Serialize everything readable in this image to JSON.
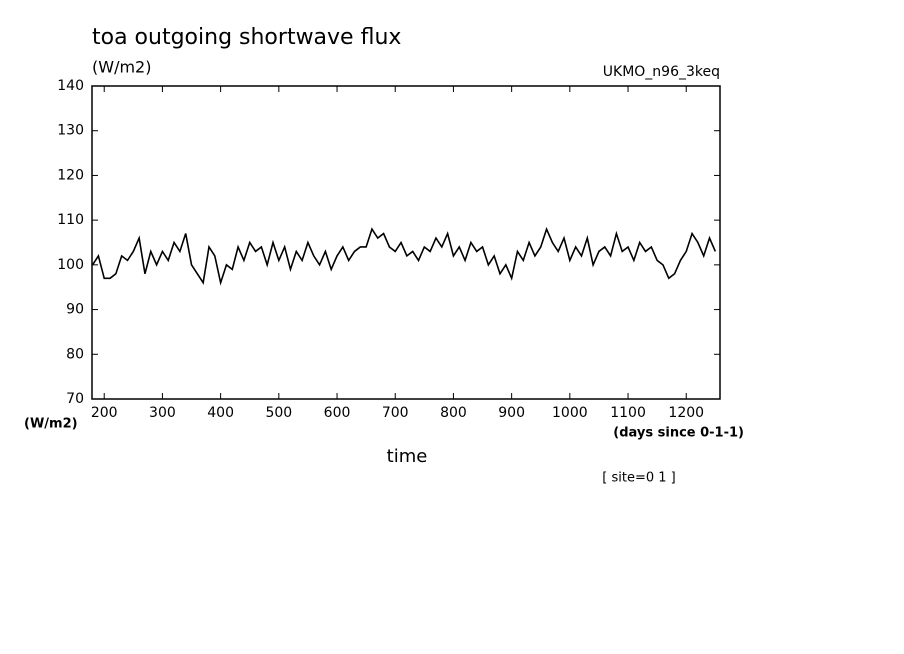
{
  "chart_data": {
    "type": "line",
    "title": "toa outgoing shortwave flux",
    "units": "(W/m2)",
    "model": "UKMO_n96_3keq",
    "y_label": "(W/m2)",
    "x_units": "(days since 0-1-1)",
    "x_label": "time",
    "site": "[ site=0 1 ]",
    "x": [
      180,
      190,
      200,
      210,
      220,
      230,
      240,
      250,
      260,
      270,
      280,
      290,
      300,
      310,
      320,
      330,
      340,
      350,
      360,
      370,
      380,
      390,
      400,
      410,
      420,
      430,
      440,
      450,
      460,
      470,
      480,
      490,
      500,
      510,
      520,
      530,
      540,
      550,
      560,
      570,
      580,
      590,
      600,
      610,
      620,
      630,
      640,
      650,
      660,
      670,
      680,
      690,
      700,
      710,
      720,
      730,
      740,
      750,
      760,
      770,
      780,
      790,
      800,
      810,
      820,
      830,
      840,
      850,
      860,
      870,
      880,
      890,
      900,
      910,
      920,
      930,
      940,
      950,
      960,
      970,
      980,
      990,
      1000,
      1010,
      1020,
      1030,
      1040,
      1050,
      1060,
      1070,
      1080,
      1090,
      1100,
      1110,
      1120,
      1130,
      1140,
      1150,
      1160,
      1170,
      1180,
      1190,
      1200,
      1210,
      1220,
      1230,
      1240,
      1250
    ],
    "series": [
      {
        "color": "#000000",
        "values": [
          100,
          102,
          97,
          97,
          98,
          102,
          101,
          103,
          106,
          98,
          103,
          100,
          103,
          101,
          105,
          103,
          107,
          100,
          98,
          96,
          104,
          102,
          96,
          100,
          99,
          104,
          101,
          105,
          103,
          104,
          100,
          105,
          101,
          104,
          99,
          103,
          101,
          105,
          102,
          100,
          103,
          99,
          102,
          104,
          101,
          103,
          104,
          104,
          108,
          106,
          107,
          104,
          103,
          105,
          102,
          103,
          101,
          104,
          103,
          106,
          104,
          107,
          102,
          104,
          101,
          105,
          103,
          104,
          100,
          102,
          98,
          100,
          97,
          103,
          101,
          105,
          102,
          104,
          108,
          105,
          103,
          106,
          101,
          104,
          102,
          106,
          100,
          103,
          104,
          102,
          107,
          103,
          104,
          101,
          105,
          103,
          104,
          101,
          100,
          97,
          98,
          101,
          103,
          107,
          105,
          102,
          106,
          103
        ]
      }
    ],
    "xlim": [
      179,
      1258
    ],
    "ylim": [
      70,
      140
    ],
    "xticks": [
      200,
      300,
      400,
      500,
      600,
      700,
      800,
      900,
      1000,
      1100,
      1200
    ],
    "yticks": [
      70,
      80,
      90,
      100,
      110,
      120,
      130,
      140
    ]
  }
}
